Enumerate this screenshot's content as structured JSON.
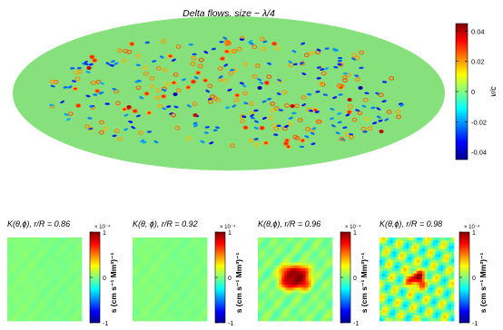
{
  "chart_data": [
    {
      "type": "heatmap",
      "projection": "mollweide",
      "title": "Delta flows, size ~ λ/4",
      "background_value": 0.0,
      "colorbar": {
        "label": "v/c",
        "ticks": [
          "0.04",
          "0.02",
          "0",
          "-0.02",
          "-0.04"
        ],
        "range": [
          -0.045,
          0.045
        ]
      },
      "colormap": "jet"
    },
    {
      "type": "heatmap",
      "title": "K(θ,ϕ), r/R = 0.86",
      "colorbar": {
        "label": "s (cm s⁻¹ Mm³)⁻¹",
        "exponent": "× 10⁻⁴",
        "ticks": [
          "1",
          "0",
          "-1"
        ],
        "range": [
          -1,
          1
        ]
      },
      "pattern": "near-zero"
    },
    {
      "type": "heatmap",
      "title": "K(θ, ϕ), r/R = 0.92",
      "colorbar": {
        "label": "s (cm s⁻¹ Mm³)⁻¹",
        "exponent": "× 10⁻⁴",
        "ticks": [
          "1",
          "0",
          "-1"
        ],
        "range": [
          -1,
          1
        ]
      },
      "pattern": "near-zero"
    },
    {
      "type": "heatmap",
      "title": "K(θ,ϕ), r/R = 0.96",
      "colorbar": {
        "label": "s (cm s⁻¹ Mm³)⁻¹",
        "exponent": "× 10⁻⁴",
        "ticks": [
          "1",
          "0",
          "-1"
        ],
        "range": [
          -1,
          1
        ]
      },
      "pattern": "central positive rectangular peak, value ~1"
    },
    {
      "type": "heatmap",
      "title": "K(θ,ϕ), r/R = 0.98",
      "colorbar": {
        "label": "s (cm s⁻¹ Mm³)⁻¹",
        "exponent": "× 10⁻⁴",
        "ticks": [
          "1",
          "0",
          "-1"
        ],
        "range": [
          -1,
          1
        ]
      },
      "pattern": "central positive peak with oscillating side lobes"
    }
  ]
}
